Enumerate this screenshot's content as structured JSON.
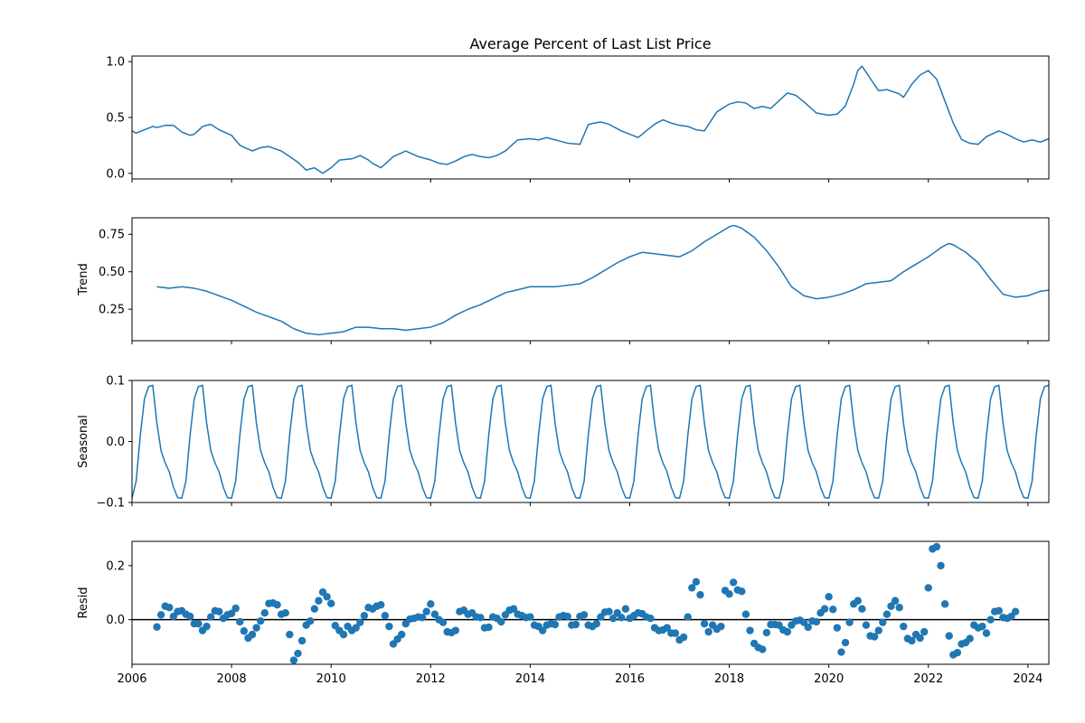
{
  "chart_data": {
    "type": "line",
    "title": "Average Percent of Last List Price",
    "x_range": [
      2006.0,
      2024.42
    ],
    "x_ticks": [
      2006,
      2008,
      2010,
      2012,
      2014,
      2016,
      2018,
      2020,
      2022,
      2024
    ],
    "x_tick_labels": [
      "2006",
      "2008",
      "2010",
      "2012",
      "2014",
      "2016",
      "2018",
      "2020",
      "2022",
      "2024"
    ],
    "line_color": "#1f77b4",
    "panels": [
      {
        "id": "observed",
        "ylabel": "",
        "kind": "line",
        "ylim": [
          -0.05,
          1.05
        ],
        "y_ticks": [
          0.0,
          0.5,
          1.0
        ],
        "y_tick_labels": [
          "0.0",
          "0.5",
          "1.0"
        ],
        "x_start": 2006.0,
        "step": 0.083333,
        "anchors": [
          [
            2006.0,
            0.38
          ],
          [
            2006.08,
            0.36
          ],
          [
            2006.25,
            0.39
          ],
          [
            2006.42,
            0.42
          ],
          [
            2006.5,
            0.41
          ],
          [
            2006.67,
            0.43
          ],
          [
            2006.83,
            0.43
          ],
          [
            2007.0,
            0.37
          ],
          [
            2007.17,
            0.34
          ],
          [
            2007.25,
            0.35
          ],
          [
            2007.42,
            0.42
          ],
          [
            2007.58,
            0.44
          ],
          [
            2007.75,
            0.39
          ],
          [
            2008.0,
            0.34
          ],
          [
            2008.17,
            0.25
          ],
          [
            2008.42,
            0.2
          ],
          [
            2008.58,
            0.23
          ],
          [
            2008.75,
            0.24
          ],
          [
            2009.0,
            0.2
          ],
          [
            2009.17,
            0.15
          ],
          [
            2009.33,
            0.1
          ],
          [
            2009.5,
            0.03
          ],
          [
            2009.67,
            0.05
          ],
          [
            2009.83,
            0.0
          ],
          [
            2010.0,
            0.05
          ],
          [
            2010.17,
            0.12
          ],
          [
            2010.42,
            0.13
          ],
          [
            2010.58,
            0.16
          ],
          [
            2010.75,
            0.12
          ],
          [
            2010.83,
            0.09
          ],
          [
            2011.0,
            0.05
          ],
          [
            2011.25,
            0.15
          ],
          [
            2011.5,
            0.2
          ],
          [
            2011.75,
            0.15
          ],
          [
            2012.0,
            0.12
          ],
          [
            2012.17,
            0.09
          ],
          [
            2012.33,
            0.08
          ],
          [
            2012.5,
            0.11
          ],
          [
            2012.67,
            0.15
          ],
          [
            2012.83,
            0.17
          ],
          [
            2013.0,
            0.15
          ],
          [
            2013.17,
            0.14
          ],
          [
            2013.33,
            0.16
          ],
          [
            2013.5,
            0.2
          ],
          [
            2013.75,
            0.3
          ],
          [
            2014.0,
            0.31
          ],
          [
            2014.17,
            0.3
          ],
          [
            2014.33,
            0.32
          ],
          [
            2014.5,
            0.3
          ],
          [
            2014.75,
            0.27
          ],
          [
            2015.0,
            0.26
          ],
          [
            2015.17,
            0.44
          ],
          [
            2015.42,
            0.46
          ],
          [
            2015.58,
            0.44
          ],
          [
            2015.83,
            0.38
          ],
          [
            2016.0,
            0.35
          ],
          [
            2016.17,
            0.32
          ],
          [
            2016.33,
            0.38
          ],
          [
            2016.5,
            0.44
          ],
          [
            2016.67,
            0.48
          ],
          [
            2016.83,
            0.45
          ],
          [
            2017.0,
            0.43
          ],
          [
            2017.17,
            0.42
          ],
          [
            2017.33,
            0.39
          ],
          [
            2017.5,
            0.38
          ],
          [
            2017.75,
            0.55
          ],
          [
            2018.0,
            0.62
          ],
          [
            2018.17,
            0.64
          ],
          [
            2018.33,
            0.63
          ],
          [
            2018.5,
            0.58
          ],
          [
            2018.67,
            0.6
          ],
          [
            2018.83,
            0.58
          ],
          [
            2019.0,
            0.65
          ],
          [
            2019.17,
            0.72
          ],
          [
            2019.33,
            0.7
          ],
          [
            2019.5,
            0.64
          ],
          [
            2019.75,
            0.54
          ],
          [
            2020.0,
            0.52
          ],
          [
            2020.17,
            0.53
          ],
          [
            2020.33,
            0.6
          ],
          [
            2020.5,
            0.8
          ],
          [
            2020.58,
            0.92
          ],
          [
            2020.67,
            0.96
          ],
          [
            2020.83,
            0.85
          ],
          [
            2021.0,
            0.74
          ],
          [
            2021.17,
            0.75
          ],
          [
            2021.42,
            0.71
          ],
          [
            2021.5,
            0.68
          ],
          [
            2021.67,
            0.8
          ],
          [
            2021.83,
            0.88
          ],
          [
            2022.0,
            0.92
          ],
          [
            2022.17,
            0.84
          ],
          [
            2022.33,
            0.65
          ],
          [
            2022.5,
            0.45
          ],
          [
            2022.67,
            0.3
          ],
          [
            2022.83,
            0.27
          ],
          [
            2023.0,
            0.26
          ],
          [
            2023.17,
            0.33
          ],
          [
            2023.42,
            0.38
          ],
          [
            2023.58,
            0.35
          ],
          [
            2023.75,
            0.31
          ],
          [
            2023.92,
            0.28
          ],
          [
            2024.08,
            0.3
          ],
          [
            2024.25,
            0.28
          ],
          [
            2024.42,
            0.31
          ]
        ]
      },
      {
        "id": "trend",
        "ylabel": "Trend",
        "kind": "line",
        "ylim": [
          0.04,
          0.86
        ],
        "y_ticks": [
          0.25,
          0.5,
          0.75
        ],
        "y_tick_labels": [
          "0.25",
          "0.50",
          "0.75"
        ],
        "anchors": [
          [
            2006.5,
            0.4
          ],
          [
            2006.75,
            0.39
          ],
          [
            2007.0,
            0.4
          ],
          [
            2007.25,
            0.39
          ],
          [
            2007.5,
            0.37
          ],
          [
            2007.75,
            0.34
          ],
          [
            2008.0,
            0.31
          ],
          [
            2008.25,
            0.27
          ],
          [
            2008.5,
            0.23
          ],
          [
            2008.75,
            0.2
          ],
          [
            2009.0,
            0.17
          ],
          [
            2009.25,
            0.12
          ],
          [
            2009.5,
            0.09
          ],
          [
            2009.75,
            0.08
          ],
          [
            2010.0,
            0.09
          ],
          [
            2010.25,
            0.1
          ],
          [
            2010.5,
            0.13
          ],
          [
            2010.75,
            0.13
          ],
          [
            2011.0,
            0.12
          ],
          [
            2011.25,
            0.12
          ],
          [
            2011.5,
            0.11
          ],
          [
            2011.75,
            0.12
          ],
          [
            2012.0,
            0.13
          ],
          [
            2012.25,
            0.16
          ],
          [
            2012.5,
            0.21
          ],
          [
            2012.75,
            0.25
          ],
          [
            2013.0,
            0.28
          ],
          [
            2013.25,
            0.32
          ],
          [
            2013.5,
            0.36
          ],
          [
            2013.75,
            0.38
          ],
          [
            2014.0,
            0.4
          ],
          [
            2014.25,
            0.4
          ],
          [
            2014.5,
            0.4
          ],
          [
            2014.75,
            0.41
          ],
          [
            2015.0,
            0.42
          ],
          [
            2015.25,
            0.46
          ],
          [
            2015.5,
            0.51
          ],
          [
            2015.75,
            0.56
          ],
          [
            2016.0,
            0.6
          ],
          [
            2016.25,
            0.63
          ],
          [
            2016.5,
            0.62
          ],
          [
            2016.75,
            0.61
          ],
          [
            2017.0,
            0.6
          ],
          [
            2017.25,
            0.64
          ],
          [
            2017.5,
            0.7
          ],
          [
            2017.75,
            0.75
          ],
          [
            2018.0,
            0.8
          ],
          [
            2018.1,
            0.81
          ],
          [
            2018.25,
            0.79
          ],
          [
            2018.5,
            0.73
          ],
          [
            2018.75,
            0.64
          ],
          [
            2019.0,
            0.53
          ],
          [
            2019.25,
            0.4
          ],
          [
            2019.5,
            0.34
          ],
          [
            2019.75,
            0.32
          ],
          [
            2020.0,
            0.33
          ],
          [
            2020.25,
            0.35
          ],
          [
            2020.5,
            0.38
          ],
          [
            2020.75,
            0.42
          ],
          [
            2021.0,
            0.43
          ],
          [
            2021.25,
            0.44
          ],
          [
            2021.5,
            0.5
          ],
          [
            2021.75,
            0.55
          ],
          [
            2022.0,
            0.6
          ],
          [
            2022.25,
            0.66
          ],
          [
            2022.4,
            0.69
          ],
          [
            2022.5,
            0.68
          ],
          [
            2022.75,
            0.63
          ],
          [
            2023.0,
            0.56
          ],
          [
            2023.25,
            0.45
          ],
          [
            2023.5,
            0.35
          ],
          [
            2023.75,
            0.33
          ],
          [
            2024.0,
            0.34
          ],
          [
            2024.25,
            0.37
          ],
          [
            2024.5,
            0.38
          ],
          [
            2024.58,
            0.38
          ]
        ]
      },
      {
        "id": "seasonal",
        "ylabel": "Seasonal",
        "kind": "line",
        "ylim": [
          -0.1,
          0.1
        ],
        "y_ticks": [
          -0.1,
          0.0,
          0.1
        ],
        "y_tick_labels": [
          "−0.1",
          "0.0",
          "0.1"
        ],
        "x_start": 2006.0,
        "step": 0.083333,
        "cycle": [
          -0.093,
          -0.065,
          0.01,
          0.07,
          0.09,
          0.092,
          0.03,
          -0.015,
          -0.035,
          -0.05,
          -0.075,
          -0.092
        ]
      },
      {
        "id": "resid",
        "ylabel": "Resid",
        "kind": "scatter",
        "ylim": [
          -0.165,
          0.29
        ],
        "y_ticks": [
          0.0,
          0.2
        ],
        "y_tick_labels": [
          "0.0",
          "0.2"
        ],
        "zero_line": true,
        "x_start": 2006.5,
        "step": 0.083333,
        "values": [
          -0.027,
          0.018,
          0.05,
          0.045,
          0.012,
          0.03,
          0.033,
          0.02,
          0.012,
          -0.015,
          -0.015,
          -0.04,
          -0.025,
          0.01,
          0.033,
          0.03,
          0.005,
          0.018,
          0.023,
          0.042,
          -0.008,
          -0.042,
          -0.068,
          -0.055,
          -0.03,
          -0.005,
          0.025,
          0.06,
          0.062,
          0.055,
          0.02,
          0.025,
          -0.055,
          -0.15,
          -0.125,
          -0.078,
          -0.02,
          -0.005,
          0.04,
          0.07,
          0.102,
          0.085,
          0.06,
          -0.022,
          -0.04,
          -0.055,
          -0.025,
          -0.04,
          -0.03,
          -0.01,
          0.015,
          0.045,
          0.04,
          0.05,
          0.055,
          0.015,
          -0.025,
          -0.09,
          -0.072,
          -0.055,
          -0.015,
          0.002,
          0.005,
          0.01,
          0.008,
          0.03,
          0.058,
          0.02,
          0.0,
          -0.01,
          -0.045,
          -0.048,
          -0.04,
          0.03,
          0.035,
          0.02,
          0.025,
          0.01,
          0.008,
          -0.03,
          -0.028,
          0.01,
          0.005,
          -0.008,
          0.018,
          0.035,
          0.04,
          0.02,
          0.015,
          0.008,
          0.01,
          -0.02,
          -0.025,
          -0.04,
          -0.02,
          -0.015,
          -0.018,
          0.01,
          0.015,
          0.012,
          -0.02,
          -0.018,
          0.012,
          0.018,
          -0.02,
          -0.025,
          -0.015,
          0.01,
          0.028,
          0.03,
          0.005,
          0.025,
          0.008,
          0.04,
          0.005,
          0.015,
          0.025,
          0.022,
          0.01,
          0.005,
          -0.03,
          -0.04,
          -0.038,
          -0.03,
          -0.05,
          -0.05,
          -0.075,
          -0.065,
          0.01,
          0.118,
          0.14,
          0.092,
          -0.015,
          -0.045,
          -0.02,
          -0.035,
          -0.025,
          0.108,
          0.095,
          0.138,
          0.11,
          0.105,
          0.02,
          -0.04,
          -0.088,
          -0.103,
          -0.11,
          -0.048,
          -0.018,
          -0.018,
          -0.02,
          -0.038,
          -0.045,
          -0.02,
          -0.005,
          -0.002,
          -0.01,
          -0.028,
          -0.005,
          -0.008,
          0.025,
          0.04,
          0.085,
          0.038,
          -0.03,
          -0.12,
          -0.085,
          -0.01,
          0.058,
          0.07,
          0.04,
          -0.02,
          -0.06,
          -0.063,
          -0.04,
          -0.01,
          0.02,
          0.05,
          0.07,
          0.045,
          -0.025,
          -0.07,
          -0.078,
          -0.055,
          -0.068,
          -0.045,
          0.118,
          0.262,
          0.27,
          0.2,
          0.058,
          -0.06,
          -0.13,
          -0.122,
          -0.09,
          -0.085,
          -0.07,
          -0.02,
          -0.03,
          -0.025,
          -0.05,
          0.0,
          0.03,
          0.033,
          0.008,
          0.005,
          0.012,
          0.03
        ]
      }
    ]
  }
}
